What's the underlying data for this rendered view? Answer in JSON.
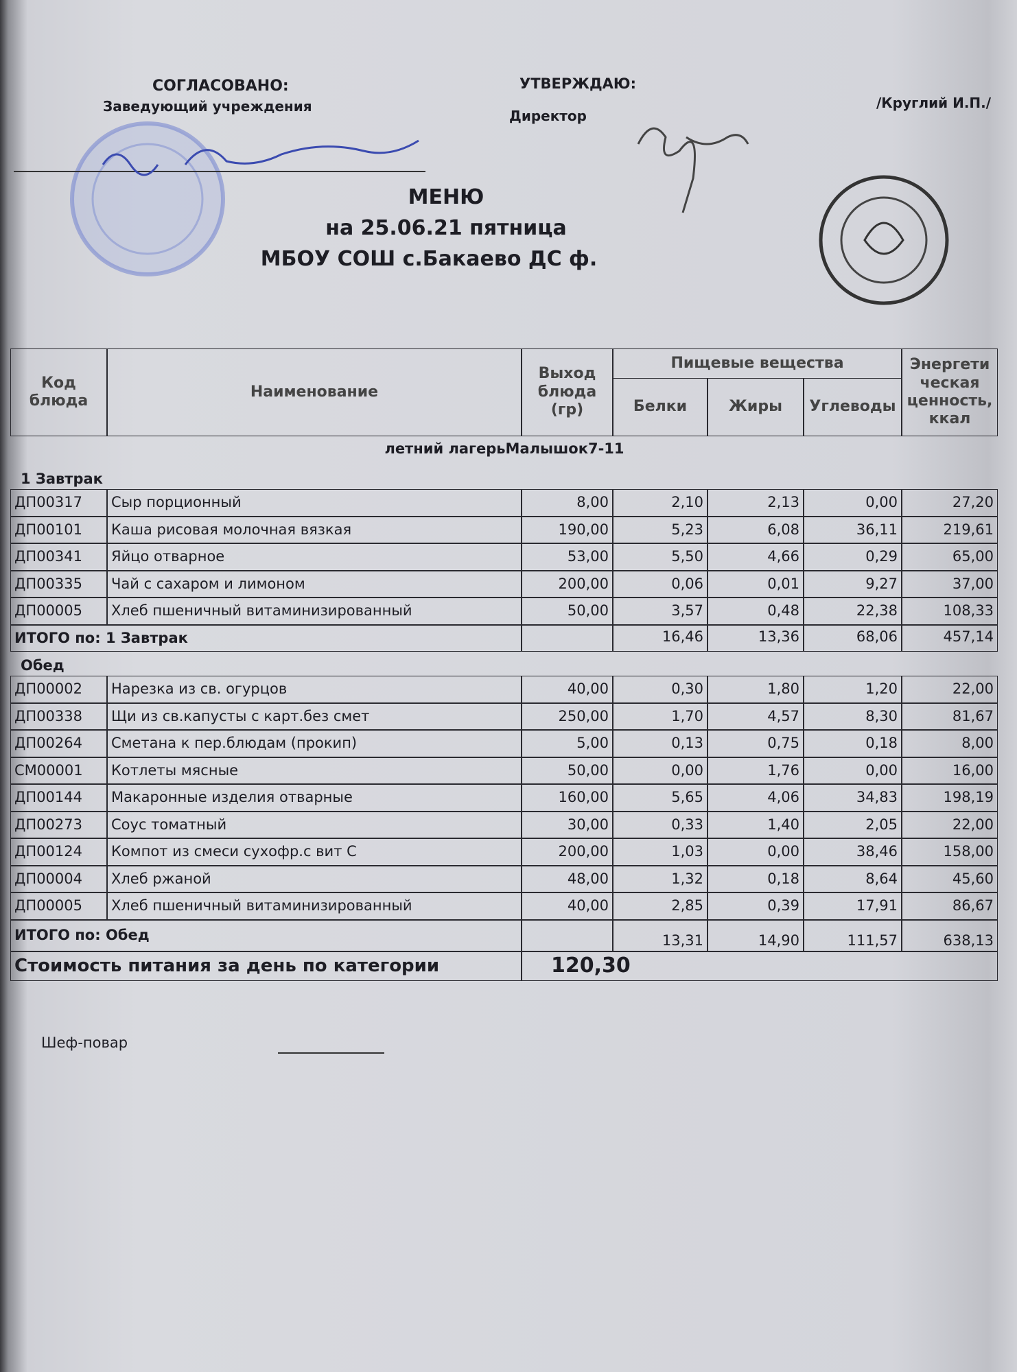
{
  "header": {
    "left_title": "СОГЛАСОВАНО:",
    "left_role": "Заведующий учреждения",
    "right_title": "УТВЕРЖДАЮ:",
    "right_role": "Директор",
    "right_name": "/Круглий И.П./"
  },
  "title": {
    "line1": "МЕНЮ",
    "line2": "на 25.06.21 пятница",
    "line3": "МБОУ СОШ с.Бакаево ДС ф."
  },
  "table": {
    "headers": {
      "code": "Код блюда",
      "name": "Наименование",
      "weight": "Выход блюда (гр)",
      "nutrients": "Пищевые вещества",
      "protein": "Белки",
      "fat": "Жиры",
      "carbs": "Углеводы",
      "energy": "Энергети ческая ценность, ккал"
    },
    "group": "летний лагерьМалышок7-11",
    "sections": [
      {
        "title": "1 Завтрак",
        "rows": [
          [
            "ДП00317",
            "Сыр порционный",
            "8,00",
            "2,10",
            "2,13",
            "0,00",
            "27,20"
          ],
          [
            "ДП00101",
            "Каша рисовая молочная вязкая",
            "190,00",
            "5,23",
            "6,08",
            "36,11",
            "219,61"
          ],
          [
            "ДП00341",
            "Яйцо отварное",
            "53,00",
            "5,50",
            "4,66",
            "0,29",
            "65,00"
          ],
          [
            "ДП00335",
            "Чай с сахаром и лимоном",
            "200,00",
            "0,06",
            "0,01",
            "9,27",
            "37,00"
          ],
          [
            "ДП00005",
            "Хлеб пшеничный витаминизированный",
            "50,00",
            "3,57",
            "0,48",
            "22,38",
            "108,33"
          ]
        ],
        "total": {
          "label": "ИТОГО по: 1 Завтрак",
          "values": [
            "16,46",
            "13,36",
            "68,06",
            "457,14"
          ]
        }
      },
      {
        "title": "Обед",
        "rows": [
          [
            "ДП00002",
            "Нарезка из св. огурцов",
            "40,00",
            "0,30",
            "1,80",
            "1,20",
            "22,00"
          ],
          [
            "ДП00338",
            "Щи из св.капусты с карт.без смет",
            "250,00",
            "1,70",
            "4,57",
            "8,30",
            "81,67"
          ],
          [
            "ДП00264",
            "Сметана к пер.блюдам (прокип)",
            "5,00",
            "0,13",
            "0,75",
            "0,18",
            "8,00"
          ],
          [
            "СМ00001",
            "Котлеты мясные",
            "50,00",
            "0,00",
            "1,76",
            "0,00",
            "16,00"
          ],
          [
            "ДП00144",
            "Макаронные изделия отварные",
            "160,00",
            "5,65",
            "4,06",
            "34,83",
            "198,19"
          ],
          [
            "ДП00273",
            "Соус томатный",
            "30,00",
            "0,33",
            "1,40",
            "2,05",
            "22,00"
          ],
          [
            "ДП00124",
            "Компот из смеси сухофр.с вит С",
            "200,00",
            "1,03",
            "0,00",
            "38,46",
            "158,00"
          ],
          [
            "ДП00004",
            "Хлеб ржаной",
            "48,00",
            "1,32",
            "0,18",
            "8,64",
            "45,60"
          ],
          [
            "ДП00005",
            "Хлеб пшеничный витаминизированный",
            "40,00",
            "2,85",
            "0,39",
            "17,91",
            "86,67"
          ]
        ],
        "total": {
          "label": "ИТОГО по: Обед",
          "values": [
            "13,31",
            "14,90",
            "111,57",
            "638,13"
          ]
        }
      }
    ],
    "cost": {
      "label": "Стоимость питания за день по категории",
      "value": "120,30"
    }
  },
  "footer": {
    "chef": "Шеф-повар"
  }
}
